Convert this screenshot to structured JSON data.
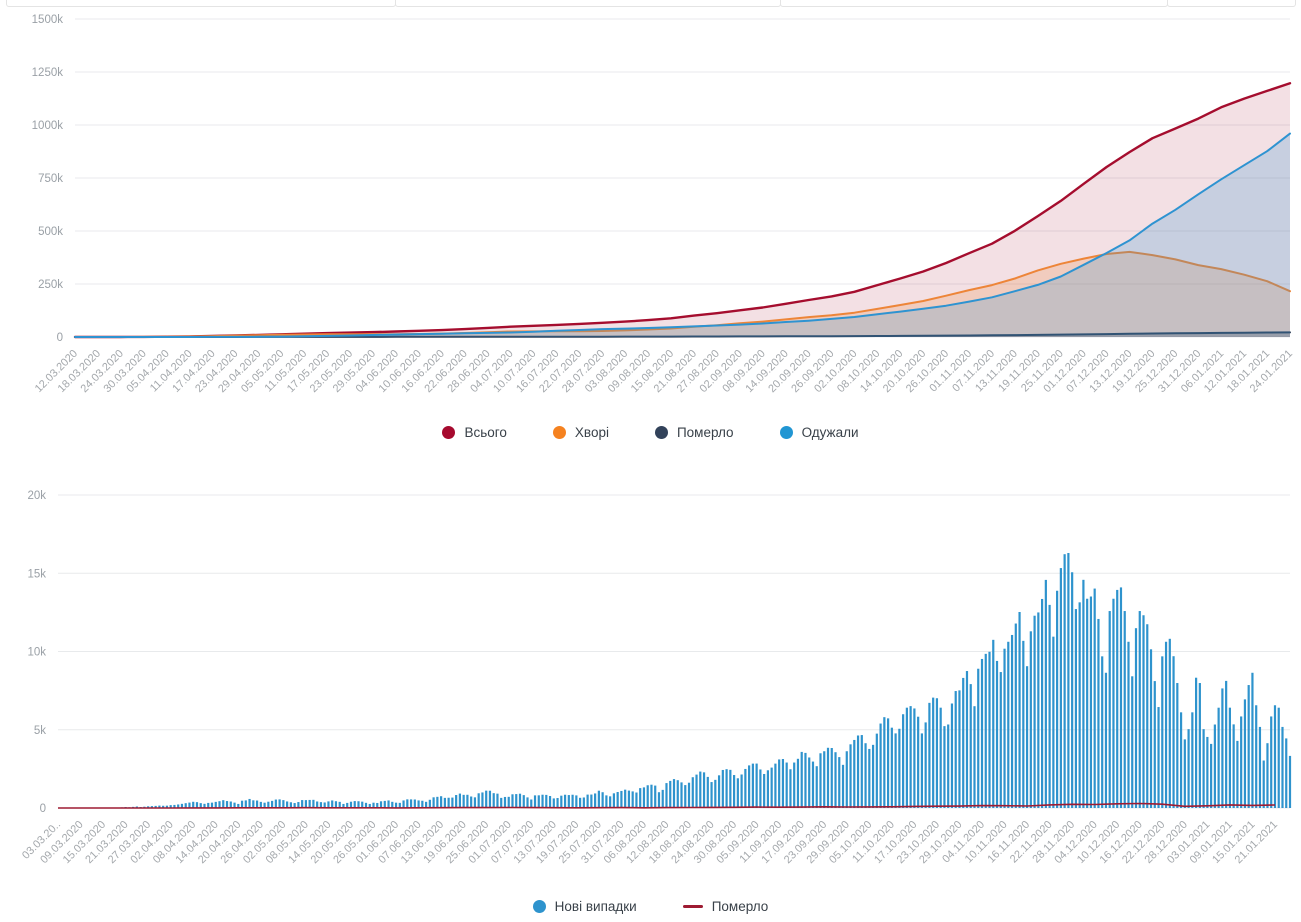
{
  "cards_row": {
    "cell_count": 4
  },
  "chart_data": [
    {
      "type": "area",
      "title": "",
      "ylim": [
        0,
        1500000
      ],
      "grid": true,
      "legend_position": "bottom-center",
      "y_ticks": {
        "labels": [
          "1500k",
          "1250k",
          "1000k",
          "750k",
          "500k",
          "250k",
          "0"
        ],
        "values": [
          1500000,
          1250000,
          1000000,
          750000,
          500000,
          250000,
          0
        ]
      },
      "x_labels": [
        "12.03.2020",
        "18.03.2020",
        "24.03.2020",
        "30.03.2020",
        "05.04.2020",
        "11.04.2020",
        "17.04.2020",
        "23.04.2020",
        "29.04.2020",
        "05.05.2020",
        "11.05.2020",
        "17.05.2020",
        "23.05.2020",
        "29.05.2020",
        "04.06.2020",
        "10.06.2020",
        "16.06.2020",
        "22.06.2020",
        "28.06.2020",
        "04.07.2020",
        "10.07.2020",
        "16.07.2020",
        "22.07.2020",
        "28.07.2020",
        "03.08.2020",
        "09.08.2020",
        "15.08.2020",
        "21.08.2020",
        "27.08.2020",
        "02.09.2020",
        "08.09.2020",
        "14.09.2020",
        "20.09.2020",
        "26.09.2020",
        "02.10.2020",
        "08.10.2020",
        "14.10.2020",
        "20.10.2020",
        "26.10.2020",
        "01.11.2020",
        "07.11.2020",
        "13.11.2020",
        "19.11.2020",
        "25.11.2020",
        "01.12.2020",
        "07.12.2020",
        "13.12.2020",
        "19.12.2020",
        "25.12.2020",
        "31.12.2020",
        "06.01.2021",
        "12.01.2021",
        "18.01.2021",
        "24.01.2021"
      ],
      "series": [
        {
          "name": "Всього",
          "color": "#a50d2e",
          "legend_color": "#a60a2e",
          "fill_opacity": 0.13,
          "values": [
            3,
            21,
            102,
            548,
            1225,
            2511,
            4662,
            7170,
            9866,
            12697,
            15648,
            18291,
            20986,
            23204,
            25964,
            29070,
            32536,
            37241,
            42932,
            48500,
            52843,
            57264,
            61851,
            67096,
            72609,
            79750,
            88136,
            100810,
            112059,
            125795,
            139170,
            156797,
            174416,
            191671,
            213028,
            244734,
            276177,
            309107,
            348924,
            395440,
            440188,
            500865,
            570153,
            642215,
            722679,
            801716,
            872228,
            937541,
            983510,
            1030374,
            1083585,
            1124430,
            1160682,
            1197107
          ]
        },
        {
          "name": "Хворі",
          "color": "#ed8538",
          "legend_color": "#f58220",
          "fill_opacity": 0.22,
          "values": [
            2,
            18,
            98,
            527,
            1163,
            2359,
            4291,
            6479,
            8513,
            10506,
            11952,
            12661,
            13266,
            13197,
            13390,
            14314,
            15981,
            18634,
            22677,
            25875,
            26490,
            26663,
            27240,
            28357,
            31153,
            35374,
            40239,
            48645,
            55554,
            64747,
            72693,
            83037,
            93810,
            102392,
            114546,
            132342,
            151141,
            169809,
            195006,
            221297,
            244866,
            275882,
            314225,
            345333,
            369636,
            391586,
            401629,
            386156,
            366059,
            339108,
            320204,
            294066,
            263035,
            216087
          ]
        },
        {
          "name": "Померло",
          "color": "#32425a",
          "legend_color": "#32425a",
          "fill_opacity": 0.3,
          "values": [
            1,
            2,
            3,
            13,
            37,
            73,
            125,
            187,
            250,
            316,
            408,
            514,
            612,
            696,
            762,
            841,
            912,
            1012,
            1125,
            1249,
            1372,
            1456,
            1551,
            1650,
            1731,
            1852,
            1973,
            2165,
            2372,
            2605,
            2931,
            3237,
            3499,
            3827,
            4193,
            4690,
            5279,
            5786,
            6464,
            7306,
            8125,
            9145,
            10112,
            11393,
            12381,
            13733,
            15000,
            16308,
            17395,
            18206,
            19344,
            20211,
            21121,
            21662
          ]
        },
        {
          "name": "Одужали",
          "color": "#2e93d1",
          "legend_color": "#2196d3",
          "fill_opacity": 0.22,
          "values": [
            0,
            1,
            1,
            8,
            25,
            79,
            246,
            504,
            1103,
            1875,
            3288,
            5116,
            7108,
            9311,
            11812,
            13915,
            15643,
            17595,
            19130,
            21376,
            24981,
            29145,
            33060,
            37089,
            39725,
            42524,
            45924,
            50000,
            54133,
            58443,
            63546,
            70523,
            77107,
            85452,
            94289,
            107702,
            119757,
            133512,
            147454,
            166837,
            187197,
            215838,
            245816,
            285489,
            340662,
            396397,
            455599,
            535077,
            600056,
            673060,
            744037,
            810153,
            876526,
            959358
          ]
        }
      ]
    },
    {
      "type": "bar",
      "title": "",
      "ylim": [
        0,
        20000
      ],
      "grid": true,
      "legend_position": "bottom-center",
      "label_step": 6,
      "y_ticks": {
        "labels": [
          "20k",
          "15k",
          "10k",
          "5k",
          "0"
        ],
        "values": [
          20000,
          15000,
          10000,
          5000,
          0
        ]
      },
      "x_labels": [
        "03.03.20..",
        "09.03.2020",
        "15.03.2020",
        "21.03.2020",
        "27.03.2020",
        "02.04.2020",
        "08.04.2020",
        "14.04.2020",
        "20.04.2020",
        "26.04.2020",
        "02.05.2020",
        "08.05.2020",
        "14.05.2020",
        "20.05.2020",
        "26.05.2020",
        "01.06.2020",
        "07.06.2020",
        "13.06.2020",
        "19.06.2020",
        "25.06.2020",
        "01.07.2020",
        "07.07.2020",
        "13.07.2020",
        "19.07.2020",
        "25.07.2020",
        "31.07.2020",
        "06.08.2020",
        "12.08.2020",
        "18.08.2020",
        "24.08.2020",
        "30.08.2020",
        "05.09.2020",
        "11.09.2020",
        "17.09.2020",
        "23.09.2020",
        "29.09.2020",
        "05.10.2020",
        "11.10.2020",
        "17.10.2020",
        "23.10.2020",
        "29.10.2020",
        "04.11.2020",
        "10.11.2020",
        "16.11.2020",
        "22.11.2020",
        "28.11.2020",
        "04.12.2020",
        "10.12.2020",
        "16.12.2020",
        "22.12.2020",
        "28.12.2020",
        "03.01.2021",
        "09.01.2021",
        "15.01.2021",
        "21.01.2021"
      ],
      "bars": {
        "name": "Нові випадки",
        "color": "#2e93cd",
        "values": [
          1,
          0,
          0,
          1,
          1,
          2,
          1,
          3,
          3,
          4,
          6,
          7,
          10,
          14,
          16,
          26,
          30,
          41,
          62,
          47,
          73,
          97,
          62,
          84,
          109,
          120,
          135,
          154,
          143,
          149,
          183,
          197,
          226,
          266,
          308,
          346,
          397,
          374,
          311,
          266,
          325,
          343,
          392,
          435,
          501,
          444,
          415,
          343,
          261,
          467,
          487,
          578,
          492,
          478,
          392,
          339,
          401,
          456,
          540,
          550,
          504,
          418,
          366,
          316,
          381,
          507,
          504,
          515,
          522,
          416,
          375,
          354,
          422,
          483,
          433,
          393,
          260,
          325,
          402,
          442,
          432,
          406,
          330,
          259,
          339,
          321,
          429,
          455,
          483,
          394,
          340,
          328,
          483,
          553,
          550,
          543,
          485,
          463,
          394,
          525,
          683,
          714,
          753,
          648,
          656,
          666,
          829,
          921,
          841,
          845,
          735,
          681,
          940,
          994,
          1109,
          1104,
          948,
          917,
          646,
          706,
          714,
          876,
          889,
          914,
          823,
          678,
          543,
          807,
          810,
          849,
          838,
          766,
          612,
          638,
          788,
          848,
          827,
          847,
          806,
          651,
          673,
          856,
          860,
          930,
          1106,
          1008,
          807,
          746,
          938,
          1022,
          1090,
          1172,
          1112,
          1061,
          990,
          1271,
          1318,
          1453,
          1489,
          1432,
          1008,
          1158,
          1592,
          1732,
          1847,
          1777,
          1637,
          1464,
          1616,
          1967,
          2134,
          2328,
          2278,
          1987,
          1658,
          1799,
          2088,
          2430,
          2481,
          2438,
          2107,
          1899,
          2141,
          2495,
          2723,
          2836,
          2839,
          2462,
          2174,
          2411,
          2582,
          2836,
          3103,
          3130,
          2905,
          2476,
          2905,
          3144,
          3584,
          3520,
          3228,
          2966,
          2671,
          3497,
          3627,
          3848,
          3833,
          3565,
          3252,
          2758,
          3627,
          4069,
          4348,
          4633,
          4661,
          4140,
          3774,
          4035,
          4753,
          5397,
          5804,
          5728,
          5133,
          4768,
          5062,
          5992,
          6410,
          6510,
          6361,
          5833,
          4766,
          5469,
          6719,
          7053,
          7014,
          6410,
          5231,
          5336,
          6677,
          7474,
          7517,
          8312,
          8752,
          7916,
          6505,
          8899,
          9524,
          9850,
          9983,
          10746,
          9397,
          8687,
          10179,
          10622,
          11057,
          11787,
          12524,
          10681,
          9061,
          11290,
          12287,
          12496,
          13357,
          14575,
          12978,
          10948,
          13882,
          15331,
          16218,
          16294,
          15064,
          12711,
          13141,
          14580,
          13371,
          13514,
          14021,
          12079,
          9691,
          8641,
          12585,
          13371,
          13935,
          14096,
          12585,
          10622,
          8416,
          11490,
          12585,
          12316,
          11742,
          10141,
          8109,
          6451,
          9691,
          10622,
          10811,
          9699,
          7986,
          6113,
          4385,
          5038,
          6113,
          8325,
          7986,
          5038,
          4541,
          4096,
          5334,
          6409,
          7641,
          8122,
          6411,
          5344,
          4288,
          5850,
          6941,
          7856,
          8641,
          6565,
          5181,
          3034,
          4141,
          5850,
          6565,
          6409,
          5181,
          4446,
          3329
        ]
      },
      "line": {
        "name": "Померло",
        "color": "#9e1b32",
        "values_at_labels": [
          0,
          0,
          1,
          2,
          3,
          2,
          5,
          9,
          11,
          10,
          14,
          17,
          15,
          13,
          12,
          9,
          13,
          17,
          23,
          28,
          29,
          23,
          18,
          15,
          19,
          26,
          15,
          24,
          31,
          38,
          42,
          56,
          52,
          60,
          79,
          64,
          71,
          74,
          105,
          113,
          121,
          151,
          149,
          127,
          198,
          237,
          225,
          269,
          289,
          243,
          110,
          139,
          197,
          167,
          189
        ]
      }
    }
  ]
}
